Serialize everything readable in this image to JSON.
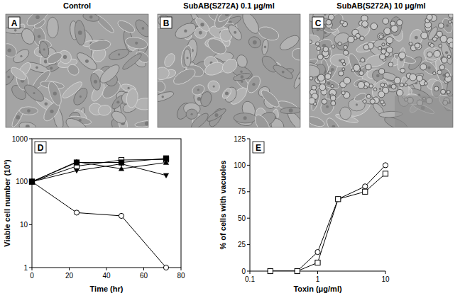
{
  "images": [
    {
      "letter": "A",
      "title": "Control"
    },
    {
      "letter": "B",
      "title": "SubAB(S272A) 0.1 μg/ml"
    },
    {
      "letter": "C",
      "title": "SubAB(S272A) 10 μg/ml"
    }
  ],
  "chart_data": [
    {
      "type": "line",
      "panel_label": "D",
      "x_label": "Time (hr)",
      "y_label": "Viable cell number (10³)",
      "x": [
        0,
        24,
        48,
        72
      ],
      "xlim": [
        0,
        80
      ],
      "xticks": [
        0,
        20,
        40,
        60,
        80
      ],
      "ylim": [
        1,
        1000
      ],
      "yticks": [
        1,
        10,
        100,
        1000
      ],
      "log": "y",
      "series": [
        {
          "color": "#000000",
          "marker": "circle-open",
          "values": [
            100,
            19,
            16,
            1
          ]
        },
        {
          "color": "#000000",
          "marker": "square-open",
          "values": [
            100,
            230,
            320,
            330
          ]
        },
        {
          "color": "#000000",
          "marker": "square",
          "values": [
            100,
            280,
            280,
            350
          ]
        },
        {
          "color": "#000000",
          "marker": "triangle-up",
          "values": [
            100,
            290,
            200,
            280
          ]
        },
        {
          "color": "#000000",
          "marker": "triangle-down",
          "values": [
            100,
            180,
            260,
            140
          ]
        }
      ]
    },
    {
      "type": "line",
      "panel_label": "E",
      "x_label": "Toxin (μg/ml)",
      "y_label": "% of cells with vacuoles",
      "x": [
        0.2,
        0.5,
        1,
        2,
        5,
        10
      ],
      "xlim": [
        0.1,
        10
      ],
      "xticks": [
        0.1,
        1,
        10
      ],
      "ylim": [
        0,
        125
      ],
      "yticks": [
        0,
        25,
        50,
        75,
        100,
        125
      ],
      "log": "x",
      "series": [
        {
          "color": "#000000",
          "marker": "circle-open",
          "values": [
            0,
            0,
            18,
            68,
            80,
            100
          ]
        },
        {
          "color": "#000000",
          "marker": "square-open",
          "values": [
            0,
            0,
            8,
            68,
            75,
            92
          ]
        }
      ]
    }
  ]
}
